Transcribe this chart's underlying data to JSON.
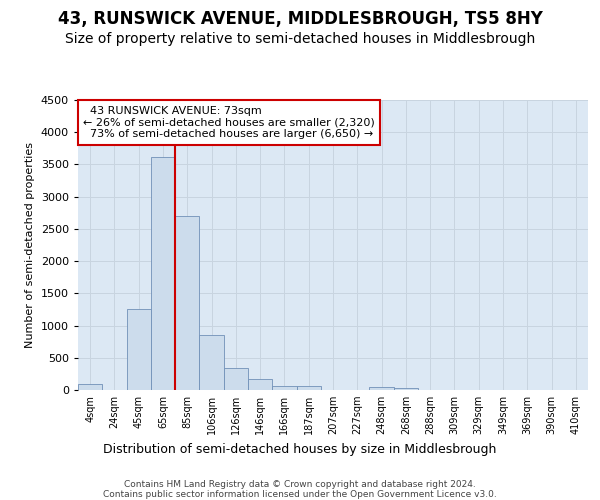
{
  "title": "43, RUNSWICK AVENUE, MIDDLESBROUGH, TS5 8HY",
  "subtitle": "Size of property relative to semi-detached houses in Middlesbrough",
  "xlabel": "Distribution of semi-detached houses by size in Middlesbrough",
  "ylabel": "Number of semi-detached properties",
  "footer_line1": "Contains HM Land Registry data © Crown copyright and database right 2024.",
  "footer_line2": "Contains public sector information licensed under the Open Government Licence v3.0.",
  "property_label": "43 RUNSWICK AVENUE: 73sqm",
  "smaller_pct": 26,
  "smaller_count": "2,320",
  "larger_pct": 73,
  "larger_count": "6,650",
  "bar_categories": [
    "4sqm",
    "24sqm",
    "45sqm",
    "65sqm",
    "85sqm",
    "106sqm",
    "126sqm",
    "146sqm",
    "166sqm",
    "187sqm",
    "207sqm",
    "227sqm",
    "248sqm",
    "268sqm",
    "288sqm",
    "309sqm",
    "329sqm",
    "349sqm",
    "369sqm",
    "390sqm",
    "410sqm"
  ],
  "bar_values": [
    100,
    0,
    1250,
    3620,
    2700,
    850,
    340,
    170,
    60,
    55,
    0,
    0,
    40,
    30,
    0,
    0,
    0,
    0,
    0,
    0,
    0
  ],
  "bar_color": "#ccdcec",
  "bar_edge_color": "#7090b8",
  "red_line_color": "#cc0000",
  "ylim": [
    0,
    4500
  ],
  "yticks": [
    0,
    500,
    1000,
    1500,
    2000,
    2500,
    3000,
    3500,
    4000,
    4500
  ],
  "grid_color": "#c8d4e0",
  "background_color": "#dce8f4",
  "title_fontsize": 12,
  "subtitle_fontsize": 10,
  "red_line_bar_index": 4
}
